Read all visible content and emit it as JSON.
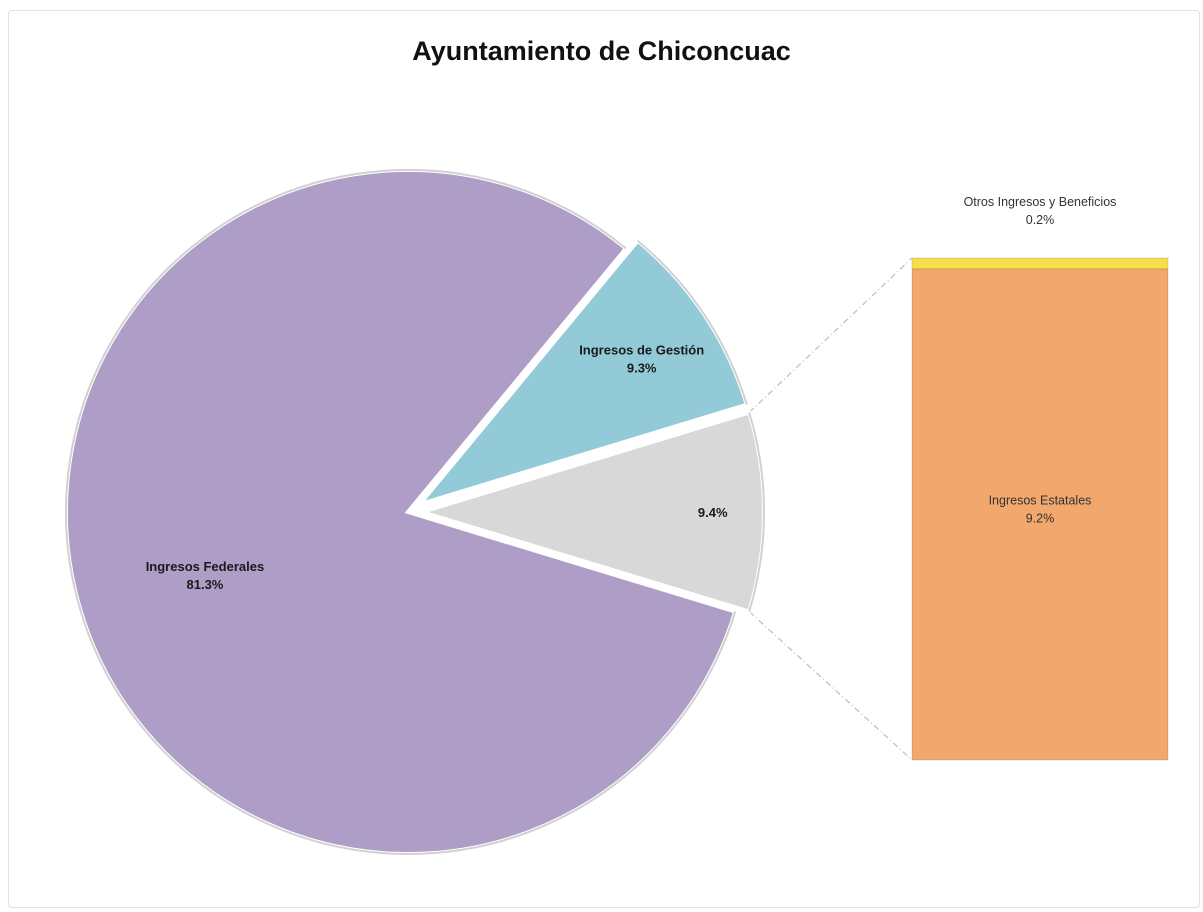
{
  "chart_data": {
    "type": "bar-of-pie",
    "title": "Ayuntamiento de Chiconcuac",
    "pie": {
      "slices": [
        {
          "name": "Ingresos Federales",
          "value": 81.3,
          "label": "81.3%",
          "color": "#ae9dc6",
          "exploded": false
        },
        {
          "name": "Ingresos de Gestión",
          "value": 9.3,
          "label": "9.3%",
          "color": "#92cad8",
          "exploded": true
        },
        {
          "name": "",
          "value": 9.4,
          "label": "9.4%",
          "color": "#d8d8d8",
          "exploded": true,
          "combined": true
        }
      ]
    },
    "bar": {
      "segments": [
        {
          "name": "Ingresos Estatales",
          "value": 9.2,
          "label": "9.2%",
          "color": "#f2a76c"
        },
        {
          "name": "Otros Ingresos y Beneficios",
          "value": 0.2,
          "label": "0.2%",
          "color": "#f5e04a"
        }
      ]
    }
  }
}
